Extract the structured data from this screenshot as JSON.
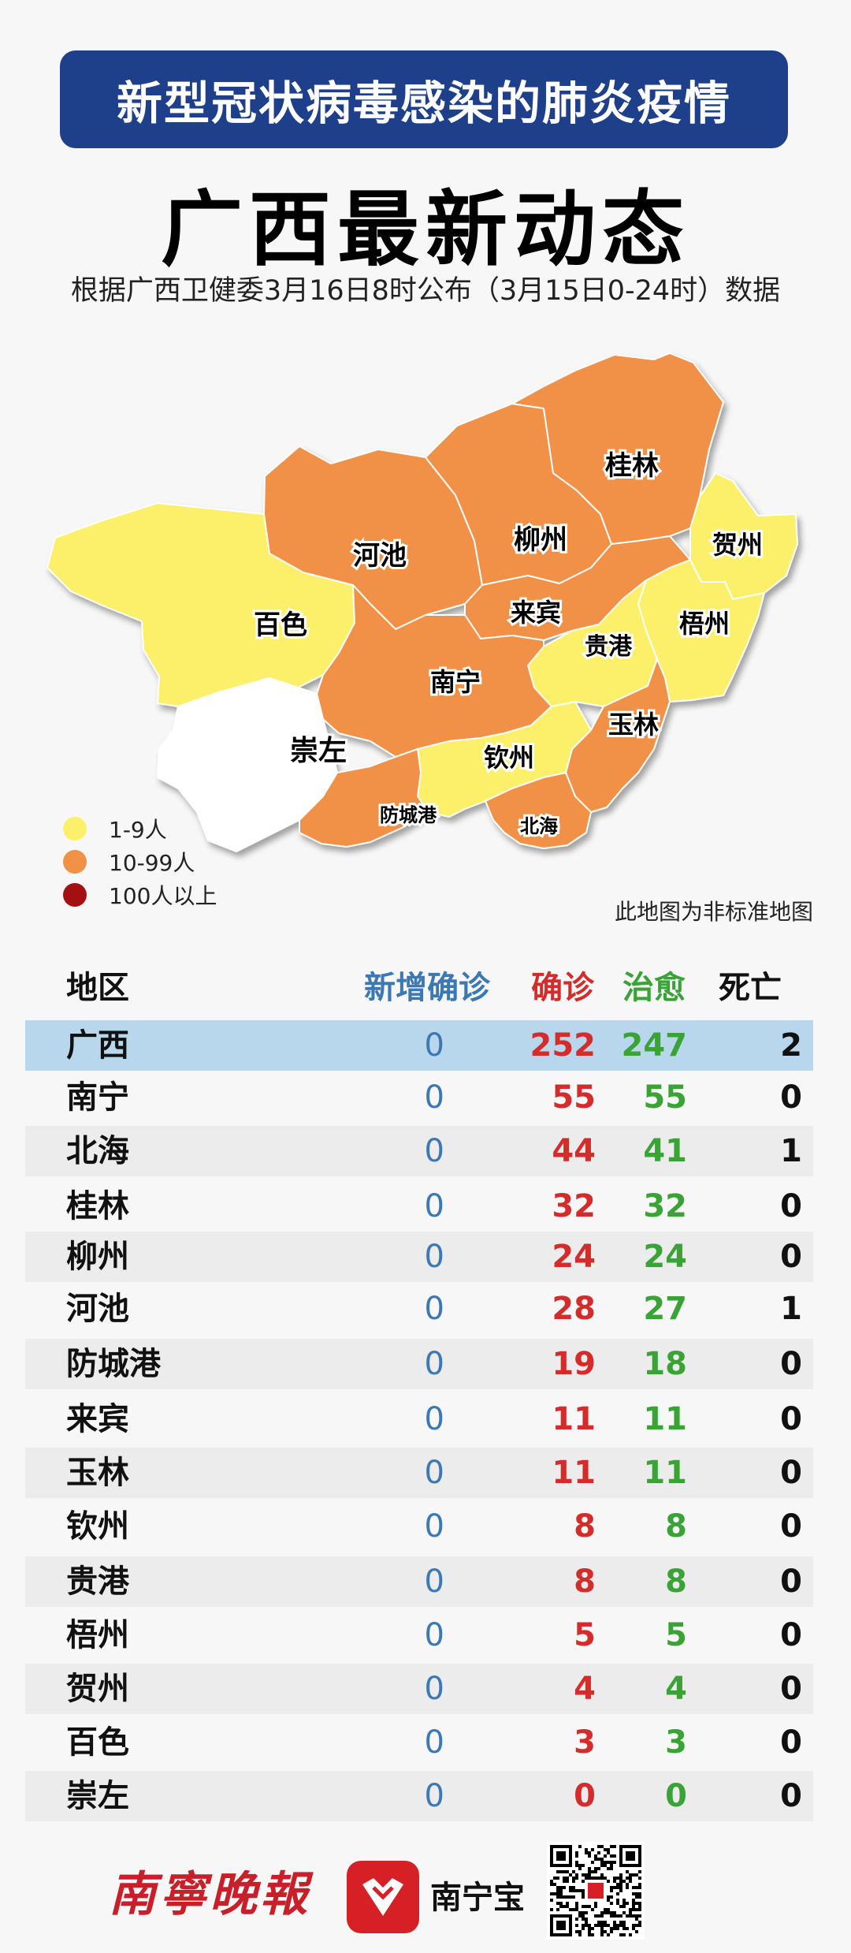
{
  "header": {
    "banner": "新型冠状病毒感染的肺炎疫情",
    "title": "广西最新动态",
    "subtitle": "根据广西卫健委3月16日8时公布（3月15日0-24时）数据"
  },
  "colors": {
    "banner_bg": "#1e3f8a",
    "level1": "#fcf06a",
    "level2": "#f19047",
    "level3": "#a41012",
    "none": "#ffffff"
  },
  "map": {
    "regions": [
      {
        "name": "百色",
        "level": "level1"
      },
      {
        "name": "河池",
        "level": "level2"
      },
      {
        "name": "柳州",
        "level": "level2"
      },
      {
        "name": "桂林",
        "level": "level2"
      },
      {
        "name": "贺州",
        "level": "level1"
      },
      {
        "name": "梧州",
        "level": "level1"
      },
      {
        "name": "来宾",
        "level": "level2"
      },
      {
        "name": "贵港",
        "level": "level1"
      },
      {
        "name": "玉林",
        "level": "level2"
      },
      {
        "name": "南宁",
        "level": "level2"
      },
      {
        "name": "崇左",
        "level": "none"
      },
      {
        "name": "钦州",
        "level": "level1"
      },
      {
        "name": "防城港",
        "level": "level2"
      },
      {
        "name": "北海",
        "level": "level2"
      }
    ],
    "legend": [
      {
        "label": "1-9人",
        "color": "#fcf06a"
      },
      {
        "label": "10-99人",
        "color": "#f19047"
      },
      {
        "label": "100人以上",
        "color": "#a41012"
      }
    ],
    "note": "此地图为非标准地图"
  },
  "table": {
    "headers": {
      "region": "地区",
      "new": "新增确诊",
      "confirmed": "确诊",
      "cured": "治愈",
      "dead": "死亡"
    },
    "rows": [
      {
        "name": "广西",
        "new": "0",
        "confirmed": "252",
        "cured": "247",
        "dead": "2"
      },
      {
        "name": "南宁",
        "new": "0",
        "confirmed": "55",
        "cured": "55",
        "dead": "0"
      },
      {
        "name": "北海",
        "new": "0",
        "confirmed": "44",
        "cured": "41",
        "dead": "1"
      },
      {
        "name": "桂林",
        "new": "0",
        "confirmed": "32",
        "cured": "32",
        "dead": "0"
      },
      {
        "name": "柳州",
        "new": "0",
        "confirmed": "24",
        "cured": "24",
        "dead": "0"
      },
      {
        "name": "河池",
        "new": "0",
        "confirmed": "28",
        "cured": "27",
        "dead": "1"
      },
      {
        "name": "防城港",
        "new": "0",
        "confirmed": "19",
        "cured": "18",
        "dead": "0"
      },
      {
        "name": "来宾",
        "new": "0",
        "confirmed": "11",
        "cured": "11",
        "dead": "0"
      },
      {
        "name": "玉林",
        "new": "0",
        "confirmed": "11",
        "cured": "11",
        "dead": "0"
      },
      {
        "name": "钦州",
        "new": "0",
        "confirmed": "8",
        "cured": "8",
        "dead": "0"
      },
      {
        "name": "贵港",
        "new": "0",
        "confirmed": "8",
        "cured": "8",
        "dead": "0"
      },
      {
        "name": "梧州",
        "new": "0",
        "confirmed": "5",
        "cured": "5",
        "dead": "0"
      },
      {
        "name": "贺州",
        "new": "0",
        "confirmed": "4",
        "cured": "4",
        "dead": "0"
      },
      {
        "name": "百色",
        "new": "0",
        "confirmed": "3",
        "cured": "3",
        "dead": "0"
      },
      {
        "name": "崇左",
        "new": "0",
        "confirmed": "0",
        "cured": "0",
        "dead": "0"
      }
    ]
  },
  "footer": {
    "paper_logo": "南寧晚報",
    "app_name": "南宁宝",
    "icons": [
      "nanningbao-logo-icon",
      "qr-code-icon"
    ]
  }
}
